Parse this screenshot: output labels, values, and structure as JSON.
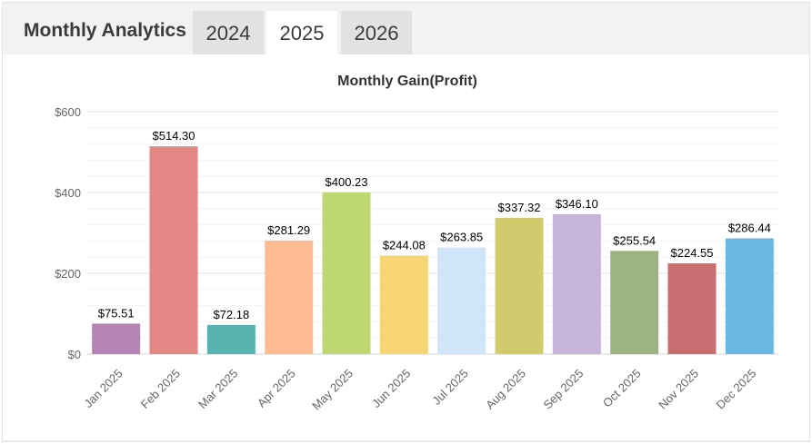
{
  "header": {
    "title": "Monthly Analytics",
    "tabs": [
      {
        "label": "2024",
        "active": false
      },
      {
        "label": "2025",
        "active": true
      },
      {
        "label": "2026",
        "active": false
      }
    ]
  },
  "colors": {
    "bars": [
      "#b584b4",
      "#e28785",
      "#59b2b0",
      "#ffbb92",
      "#bfd770",
      "#f7d575",
      "#d0e5fa",
      "#d2cb6d",
      "#c6b5d9",
      "#9db480",
      "#c76f70",
      "#6ab8e4"
    ]
  },
  "chart_data": {
    "type": "bar",
    "title": "Monthly Gain(Profit)",
    "xlabel": "",
    "ylabel": "",
    "ylim": [
      0,
      600
    ],
    "ytick_values": [
      0,
      200,
      400,
      600
    ],
    "ytick_labels": [
      "$0",
      "$200",
      "$400",
      "$600"
    ],
    "minor_gridline_step": 40,
    "categories": [
      "Jan 2025",
      "Feb 2025",
      "Mar 2025",
      "Apr 2025",
      "May 2025",
      "Jun 2025",
      "Jul 2025",
      "Aug 2025",
      "Sep 2025",
      "Oct 2025",
      "Nov 2025",
      "Dec 2025"
    ],
    "values": [
      75.51,
      514.3,
      72.18,
      281.29,
      400.23,
      244.08,
      263.85,
      337.32,
      346.1,
      255.54,
      224.55,
      286.44
    ],
    "value_labels": [
      "$75.51",
      "$514.30",
      "$72.18",
      "$281.29",
      "$400.23",
      "$244.08",
      "$263.85",
      "$337.32",
      "$346.10",
      "$255.54",
      "$224.55",
      "$286.44"
    ],
    "grid": true,
    "legend": "none"
  }
}
